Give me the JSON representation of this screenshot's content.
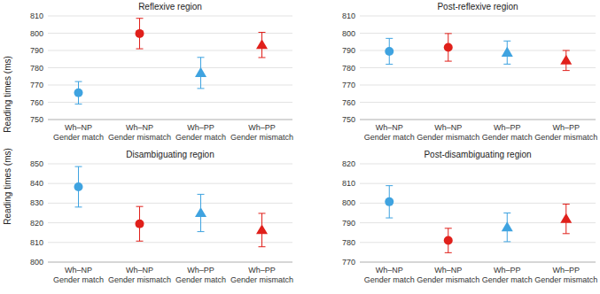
{
  "chart_data": [
    {
      "type": "scatter",
      "title": "Reflexive region",
      "y_label": "Reading times (ms)",
      "categories": [
        "Wh–NP\nGender match",
        "Wh–NP\nGender mismatch",
        "Wh–PP\nGender match",
        "Wh–PP\nGender mismatch"
      ],
      "series": [
        {
          "marker": "circle",
          "colors": [
            "#3fa3e0",
            "#e0201b",
            null,
            null
          ],
          "values": [
            765.5,
            799.8,
            null,
            null
          ],
          "errors": [
            6.5,
            8.8,
            null,
            null
          ]
        },
        {
          "marker": "triangle",
          "colors": [
            null,
            null,
            "#3fa3e0",
            "#e0201b"
          ],
          "values": [
            null,
            null,
            777,
            793.2
          ],
          "errors": [
            null,
            null,
            9,
            7.3
          ]
        }
      ],
      "ylim": [
        750,
        810
      ],
      "yticks": [
        750,
        760,
        770,
        780,
        790,
        800,
        810
      ],
      "grid": true
    },
    {
      "type": "scatter",
      "title": "Post-reflexive region",
      "categories": [
        "Wh–NP\nGender match",
        "Wh–NP\nGender mismatch",
        "Wh–PP\nGender match",
        "Wh–PP\nGender mismatch"
      ],
      "series": [
        {
          "marker": "circle",
          "colors": [
            "#3fa3e0",
            "#e0201b",
            null,
            null
          ],
          "values": [
            789.5,
            791.8,
            null,
            null
          ],
          "errors": [
            7.5,
            8,
            null,
            null
          ]
        },
        {
          "marker": "triangle",
          "colors": [
            null,
            null,
            "#3fa3e0",
            "#e0201b"
          ],
          "values": [
            null,
            null,
            788.8,
            784.2
          ],
          "errors": [
            null,
            null,
            6.7,
            5.8
          ]
        }
      ],
      "ylim": [
        750,
        810
      ],
      "yticks": [
        750,
        760,
        770,
        780,
        790,
        800,
        810
      ],
      "grid": true
    },
    {
      "type": "scatter",
      "title": "Disambiguating region",
      "y_label": "Reading times (ms)",
      "categories": [
        "Wh–NP\nGender match",
        "Wh–NP\nGender mismatch",
        "Wh–PP\nGender match",
        "Wh–PP\nGender mismatch"
      ],
      "series": [
        {
          "marker": "circle",
          "colors": [
            "#3fa3e0",
            "#e0201b",
            null,
            null
          ],
          "values": [
            838.3,
            819.5,
            null,
            null
          ],
          "errors": [
            10.3,
            8.8,
            null,
            null
          ]
        },
        {
          "marker": "triangle",
          "colors": [
            null,
            null,
            "#3fa3e0",
            "#e0201b"
          ],
          "values": [
            null,
            null,
            825,
            816.3
          ],
          "errors": [
            null,
            null,
            9.5,
            8.5
          ]
        }
      ],
      "ylim": [
        800,
        850
      ],
      "yticks": [
        800,
        810,
        820,
        830,
        840,
        850
      ],
      "grid": true
    },
    {
      "type": "scatter",
      "title": "Post-disambiguating region",
      "categories": [
        "Wh–NP\nGender match",
        "Wh–NP\nGender mismatch",
        "Wh–PP\nGender match",
        "Wh–PP\nGender mismatch"
      ],
      "series": [
        {
          "marker": "circle",
          "colors": [
            "#3fa3e0",
            "#e0201b",
            null,
            null
          ],
          "values": [
            800.7,
            781,
            null,
            null
          ],
          "errors": [
            8.2,
            6.2,
            null,
            null
          ]
        },
        {
          "marker": "triangle",
          "colors": [
            null,
            null,
            "#3fa3e0",
            "#e0201b"
          ],
          "values": [
            null,
            null,
            787.7,
            792
          ],
          "errors": [
            null,
            null,
            7.3,
            7.5
          ]
        }
      ],
      "ylim": [
        770,
        820
      ],
      "yticks": [
        770,
        780,
        790,
        800,
        810,
        820
      ],
      "grid": true
    }
  ]
}
